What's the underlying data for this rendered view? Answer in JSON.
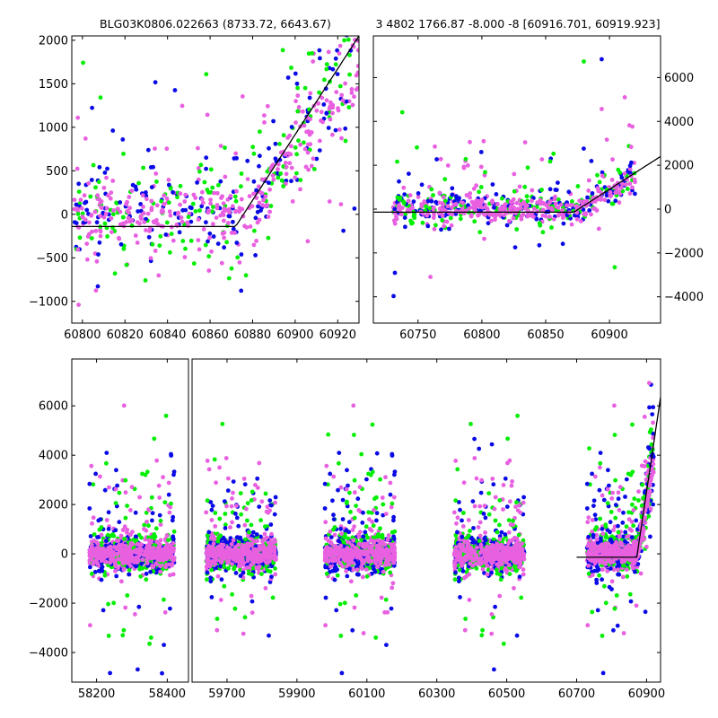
{
  "figure": {
    "title_left": "BLG03K0806.022663 (8733.72, 6643.67)",
    "title_right": "3 4802 1766.87 -8.000 -8 [60916.701, 60919.923]"
  },
  "colors": {
    "series_green": "#00ee00",
    "series_blue": "#0a0ae6",
    "series_pink": "#e860e0",
    "model_line": "#000000"
  },
  "chart_data": [
    {
      "type": "scatter",
      "panel": "top-left zoom",
      "xlim": [
        60795,
        60930
      ],
      "ylim": [
        -1250,
        2050
      ],
      "xticks": [
        60800,
        60820,
        60840,
        60860,
        60880,
        60900,
        60920
      ],
      "yticks": [
        -1000,
        -500,
        0,
        500,
        1000,
        1500,
        2000
      ],
      "ytick_side": "left",
      "series": [
        {
          "name": "green",
          "color": "#00ee00"
        },
        {
          "name": "blue",
          "color": "#0a0ae6"
        },
        {
          "name": "pink",
          "color": "#e860e0"
        }
      ],
      "model_line": {
        "x": [
          60795,
          60872,
          60930
        ],
        "y": [
          -140,
          -140,
          2050
        ]
      },
      "seasons": [
        {
          "start": 60796,
          "end": 60930,
          "center": 0,
          "spread": 260
        }
      ]
    },
    {
      "type": "scatter",
      "panel": "top-right",
      "xlim": [
        60715,
        60940
      ],
      "ylim": [
        -5200,
        7900
      ],
      "xticks": [
        60750,
        60800,
        60850,
        60900
      ],
      "yticks": [
        -4000,
        -2000,
        0,
        2000,
        4000,
        6000
      ],
      "ytick_side": "right",
      "series": [
        {
          "name": "green",
          "color": "#00ee00"
        },
        {
          "name": "blue",
          "color": "#0a0ae6"
        },
        {
          "name": "pink",
          "color": "#e860e0"
        }
      ],
      "model_line": {
        "x": [
          60715,
          60872,
          60940
        ],
        "y": [
          -140,
          -140,
          2400
        ]
      },
      "seasons": [
        {
          "start": 60730,
          "end": 60920,
          "center": 0,
          "spread": 350
        }
      ]
    },
    {
      "type": "scatter",
      "panel": "bottom full light curve",
      "ylim": [
        -5200,
        7900
      ],
      "yticks": [
        -4000,
        -2000,
        0,
        2000,
        4000,
        6000
      ],
      "ytick_side": "left",
      "broken_axis": true,
      "segments": [
        {
          "xlim": [
            58130,
            58460
          ],
          "xticks": [
            58200,
            58400
          ]
        },
        {
          "xlim": [
            59600,
            60940
          ],
          "xticks": [
            59700,
            59900,
            60100,
            60300,
            60500,
            60700,
            60900
          ]
        }
      ],
      "series": [
        {
          "name": "green",
          "color": "#00ee00"
        },
        {
          "name": "blue",
          "color": "#0a0ae6"
        },
        {
          "name": "pink",
          "color": "#e860e0"
        }
      ],
      "model_line": {
        "x": [
          60700,
          60872,
          60940
        ],
        "y": [
          -140,
          -140,
          6350
        ]
      },
      "seasons": [
        {
          "start": 58180,
          "end": 58420,
          "center": 0,
          "spread": 350
        },
        {
          "start": 59640,
          "end": 59840,
          "center": 0,
          "spread": 350
        },
        {
          "start": 59980,
          "end": 60180,
          "center": 0,
          "spread": 350
        },
        {
          "start": 60350,
          "end": 60550,
          "center": 0,
          "spread": 350
        },
        {
          "start": 60730,
          "end": 60920,
          "center": 0,
          "spread": 350
        }
      ]
    }
  ]
}
